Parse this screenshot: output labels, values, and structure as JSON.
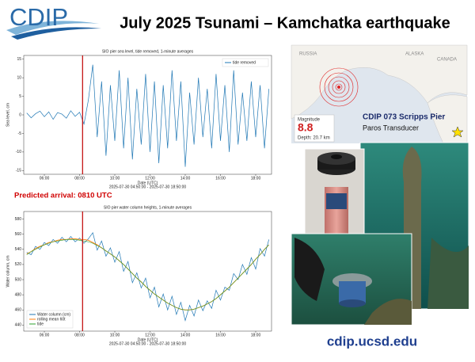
{
  "header": {
    "logo": "CDIP",
    "title": "July 2025 Tsunami – Kamchatka earthquake"
  },
  "annotation": {
    "predicted_arrival": "Predicted arrival: 0810 UTC"
  },
  "map": {
    "labels": [
      "RUSSIA",
      "ALASKA",
      "CANADA"
    ],
    "magnitude_label": "Magnitude",
    "magnitude": 8.8,
    "depth": "Depth: 20.7 km"
  },
  "station": {
    "name": "CDIP 073 Scripps Pier",
    "sensor": "Paros Transducer"
  },
  "footer": {
    "url": "cdip.ucsd.edu"
  },
  "chart_data": [
    {
      "type": "line",
      "title": "SIO pier sea level, tide removed, 1-minute averages",
      "xlabel": "Date (UTC)",
      "xrange_label": "2025-07-30 04:50:00 - 2025-07-30 18:50:00",
      "ylabel": "Sea level, cm",
      "x": [
        5,
        5.25,
        5.5,
        5.75,
        6,
        6.25,
        6.5,
        6.75,
        7,
        7.25,
        7.5,
        7.75,
        8,
        8.25,
        8.5,
        8.75,
        9,
        9.25,
        9.5,
        9.75,
        10,
        10.25,
        10.5,
        10.75,
        11,
        11.25,
        11.5,
        11.75,
        12,
        12.25,
        12.5,
        12.75,
        13,
        13.25,
        13.5,
        13.75,
        14,
        14.25,
        14.5,
        14.75,
        15,
        15.25,
        15.5,
        15.75,
        16,
        16.25,
        16.5,
        16.75,
        17,
        17.25,
        17.5,
        17.75,
        18,
        18.25,
        18.5,
        18.75
      ],
      "series": [
        {
          "name": "tide removed",
          "color": "#1f77b4",
          "values": [
            0.5,
            -0.8,
            0.3,
            1.0,
            -0.5,
            0.8,
            -1.2,
            0.6,
            0.2,
            -0.9,
            1.1,
            -0.4,
            0.7,
            -2.5,
            4,
            13.5,
            -6,
            9,
            -11,
            8,
            -7,
            12,
            -9,
            10,
            -12,
            7,
            -8,
            11,
            -10,
            9,
            -13,
            8,
            -9,
            12,
            -7,
            9,
            -14,
            6,
            -8,
            10,
            -6,
            7,
            -9,
            11,
            -7,
            8,
            -10,
            12,
            -8,
            6,
            -7,
            9,
            -6,
            8,
            -9,
            7
          ]
        }
      ],
      "xlim": [
        4.83,
        18.9
      ],
      "ylim": [
        -16,
        16
      ],
      "xticks": [
        {
          "value": 6,
          "label": "06:00"
        },
        {
          "value": 8,
          "label": "08:00"
        },
        {
          "value": 10,
          "label": "10:00"
        },
        {
          "value": 12,
          "label": "12:00"
        },
        {
          "value": 14,
          "label": "14:00"
        },
        {
          "value": 16,
          "label": "16:00"
        },
        {
          "value": 18,
          "label": "18:00"
        }
      ],
      "yticks": [
        -15,
        -10,
        -5,
        0,
        5,
        10,
        15
      ],
      "vline": {
        "value": 8.17,
        "color": "#c00000"
      },
      "grid": false,
      "legend": "upper right"
    },
    {
      "type": "line",
      "title": "SIO pier water column heights, 1-minute averages",
      "xlabel": "Date (UTC)",
      "xrange_label": "2025-07-30 04:50:00 - 2025-07-30 18:50:00",
      "ylabel": "Water column, cm",
      "x": [
        5,
        5.25,
        5.5,
        5.75,
        6,
        6.25,
        6.5,
        6.75,
        7,
        7.25,
        7.5,
        7.75,
        8,
        8.25,
        8.5,
        8.75,
        9,
        9.25,
        9.5,
        9.75,
        10,
        10.25,
        10.5,
        10.75,
        11,
        11.25,
        11.5,
        11.75,
        12,
        12.25,
        12.5,
        12.75,
        13,
        13.25,
        13.5,
        13.75,
        14,
        14.25,
        14.5,
        14.75,
        15,
        15.25,
        15.5,
        15.75,
        16,
        16.25,
        16.5,
        16.75,
        17,
        17.25,
        17.5,
        17.75,
        18,
        18.25,
        18.5,
        18.75
      ],
      "series": [
        {
          "name": "Water column (cm)",
          "color": "#1f77b4",
          "values": [
            536,
            533,
            544,
            540,
            549,
            545,
            553,
            548,
            556,
            550,
            557,
            550,
            555,
            548,
            554,
            562,
            539,
            551,
            531,
            542,
            523,
            537,
            511,
            524,
            496,
            509,
            489,
            502,
            476,
            490,
            464,
            481,
            460,
            478,
            454,
            470,
            446,
            466,
            452,
            473,
            459,
            472,
            462,
            486,
            473,
            490,
            486,
            508,
            500,
            520,
            507,
            529,
            514,
            541,
            531,
            553
          ]
        },
        {
          "name": "rolling mean 60t",
          "color": "#ff7f0e",
          "values": [
            534,
            537,
            541,
            544,
            546,
            549,
            550,
            552,
            553,
            553,
            554,
            554,
            553,
            553,
            552,
            549,
            546,
            542,
            538,
            534,
            530,
            525,
            520,
            514,
            508,
            502,
            497,
            491,
            486,
            481,
            477,
            473,
            469,
            466,
            463,
            461,
            460,
            460,
            461,
            463,
            465,
            468,
            471,
            475,
            480,
            485,
            490,
            496,
            502,
            508,
            514,
            520,
            527,
            533,
            540,
            546
          ]
        },
        {
          "name": "tide",
          "color": "#2ca02c",
          "values": [
            533,
            537,
            540,
            543,
            546,
            548,
            550,
            551,
            552,
            553,
            553,
            553,
            552,
            551,
            550,
            548,
            545,
            542,
            538,
            534,
            530,
            525,
            520,
            514,
            508,
            502,
            497,
            491,
            486,
            481,
            477,
            473,
            469,
            466,
            463,
            461,
            460,
            460,
            461,
            463,
            465,
            468,
            471,
            475,
            480,
            485,
            490,
            496,
            502,
            508,
            514,
            520,
            527,
            533,
            540,
            546
          ]
        }
      ],
      "xlim": [
        4.83,
        18.9
      ],
      "ylim": [
        432,
        590
      ],
      "xticks": [
        {
          "value": 6,
          "label": "06:00"
        },
        {
          "value": 8,
          "label": "08:00"
        },
        {
          "value": 10,
          "label": "10:00"
        },
        {
          "value": 12,
          "label": "12:00"
        },
        {
          "value": 14,
          "label": "14:00"
        },
        {
          "value": 16,
          "label": "16:00"
        },
        {
          "value": 18,
          "label": "18:00"
        }
      ],
      "yticks": [
        440,
        460,
        480,
        500,
        520,
        540,
        560,
        580
      ],
      "vline": {
        "value": 8.17,
        "color": "#c00000"
      },
      "grid": false,
      "legend": "lower left"
    }
  ]
}
